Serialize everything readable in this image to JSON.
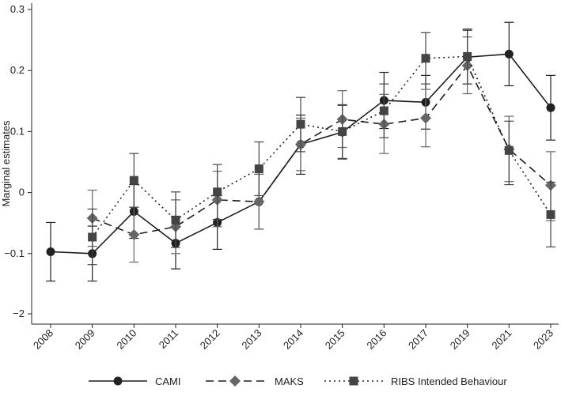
{
  "chart_data": {
    "type": "line",
    "title": "",
    "xlabel": "",
    "ylabel": "Marginal estimates",
    "ylim": [
      -2,
      0.3
    ],
    "yticks": [
      -2,
      -0.1,
      0,
      0.1,
      0.2,
      0.3
    ],
    "ytick_labels": [
      "−2",
      "−0.1",
      "0",
      "0.1",
      "0.2",
      "0.3"
    ],
    "categories": [
      "2008",
      "2009",
      "2010",
      "2011",
      "2012",
      "2013",
      "2014",
      "2015",
      "2016",
      "2017",
      "2019",
      "2021",
      "2023"
    ],
    "grid": false,
    "legend_position": "bottom",
    "series": [
      {
        "name": "CAMI",
        "color": "#222222",
        "marker": "circle",
        "line_style": "solid",
        "values": [
          -0.097,
          -0.1,
          -0.031,
          -0.083,
          -0.049,
          -0.015,
          0.079,
          0.099,
          0.151,
          0.148,
          0.222,
          0.227,
          0.139
        ],
        "ci_low": [
          -0.145,
          -0.145,
          -0.075,
          -0.125,
          -0.093,
          -0.06,
          0.03,
          0.055,
          0.105,
          0.104,
          0.178,
          0.175,
          0.086
        ],
        "ci_high": [
          -0.049,
          -0.055,
          0.013,
          -0.04,
          -0.005,
          0.03,
          0.127,
          0.143,
          0.197,
          0.192,
          0.266,
          0.279,
          0.192
        ]
      },
      {
        "name": "MAKS",
        "color": "#666666",
        "marker": "diamond",
        "line_style": "dashed",
        "values": [
          null,
          -0.042,
          -0.069,
          -0.056,
          -0.012,
          -0.015,
          0.079,
          0.12,
          0.112,
          0.122,
          0.208,
          0.071,
          0.012
        ],
        "ci_low": [
          null,
          -0.088,
          -0.114,
          -0.1,
          -0.056,
          -0.06,
          0.036,
          0.074,
          0.064,
          0.075,
          0.162,
          0.018,
          -0.046
        ],
        "ci_high": [
          null,
          0.004,
          -0.024,
          -0.012,
          0.035,
          0.03,
          0.122,
          0.167,
          0.161,
          0.169,
          0.255,
          0.125,
          0.067
        ]
      },
      {
        "name": "RIBS Intended Behaviour",
        "color": "#444444",
        "marker": "square",
        "line_style": "dotted",
        "values": [
          null,
          -0.073,
          0.02,
          -0.045,
          0.001,
          0.039,
          0.112,
          0.1,
          0.134,
          0.22,
          0.223,
          0.069,
          -0.036
        ],
        "ci_low": [
          null,
          -0.118,
          -0.024,
          -0.09,
          -0.044,
          -0.005,
          0.067,
          0.056,
          0.09,
          0.178,
          0.178,
          0.013,
          -0.089
        ],
        "ci_high": [
          null,
          -0.027,
          0.064,
          0.001,
          0.046,
          0.083,
          0.156,
          0.144,
          0.178,
          0.262,
          0.268,
          0.117,
          0.017
        ]
      }
    ]
  }
}
